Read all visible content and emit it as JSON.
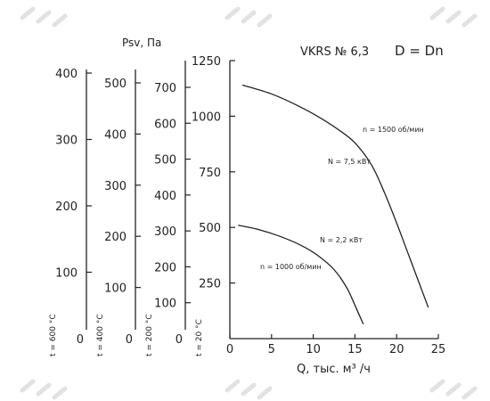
{
  "chart_data": {
    "type": "line",
    "title": "VKRS № 6,3",
    "subtitle": "D = Dn",
    "xlabel": "Q, тыс. м³ /ч",
    "ylabel": "Psv, Па",
    "xlim": [
      0,
      25
    ],
    "xticks": [
      "0",
      "5",
      "10",
      "15",
      "20",
      "25"
    ],
    "ylim": [
      0,
      1250
    ],
    "yticks": [
      "250",
      "500",
      "750",
      "1000",
      "1250"
    ],
    "grid": false,
    "temperature_axes": [
      {
        "label": "t = 20 °C",
        "ticks": [
          "0",
          "250",
          "500",
          "750",
          "1000",
          "1250"
        ]
      },
      {
        "label": "t = 200 °C",
        "ticks": [
          "0",
          "100",
          "200",
          "300",
          "400",
          "500",
          "600",
          "700"
        ]
      },
      {
        "label": "t = 400 °C",
        "ticks": [
          "0",
          "100",
          "200",
          "300",
          "400",
          "500"
        ]
      },
      {
        "label": "t = 600 °C",
        "ticks": [
          "0",
          "100",
          "200",
          "300",
          "400"
        ]
      }
    ],
    "series": [
      {
        "name": "n = 1500 об/мин",
        "power_label": "N = 7,5 кВт",
        "x": [
          1.5,
          5,
          8,
          10.5,
          13,
          15,
          17,
          18.5,
          20,
          21.5,
          23.8
        ],
        "y": [
          1140,
          1100,
          1050,
          1000,
          940,
          880,
          780,
          660,
          520,
          370,
          140
        ]
      },
      {
        "name": "n = 1000 об/мин",
        "power_label": "N = 2,2 кВт",
        "x": [
          1,
          3.5,
          6,
          8.5,
          10.5,
          12.5,
          14,
          15,
          16
        ],
        "y": [
          510,
          490,
          460,
          420,
          375,
          310,
          230,
          150,
          65
        ]
      }
    ]
  }
}
